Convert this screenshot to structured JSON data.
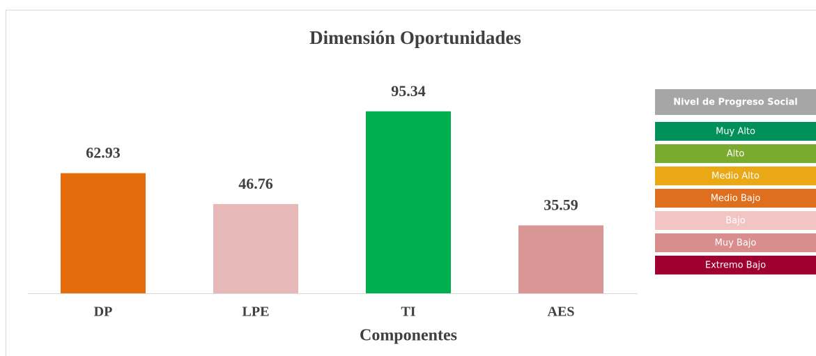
{
  "chart_data": {
    "type": "bar",
    "title": "Dimensión Oportunidades",
    "x_label": "Componentes",
    "categories": [
      "DP",
      "LPE",
      "TI",
      "AES"
    ],
    "values": [
      62.93,
      46.76,
      95.34,
      35.59
    ],
    "colors": [
      "#e46c0a",
      "#e6b9b8",
      "#00b050",
      "#d99694"
    ],
    "ylim": [
      0,
      100
    ],
    "legend": {
      "title": "Nivel de Progreso Social",
      "title_color": "#a6a6a6",
      "items": [
        {
          "label": "Muy Alto",
          "color": "#00915a"
        },
        {
          "label": "Alto",
          "color": "#7aab2f"
        },
        {
          "label": "Medio Alto",
          "color": "#eaa914"
        },
        {
          "label": "Medio Bajo",
          "color": "#de6f1f"
        },
        {
          "label": "Bajo",
          "color": "#f2c4c4"
        },
        {
          "label": "Muy Bajo",
          "color": "#d98d8d"
        },
        {
          "label": "Extremo Bajo",
          "color": "#a0002f"
        }
      ]
    }
  }
}
